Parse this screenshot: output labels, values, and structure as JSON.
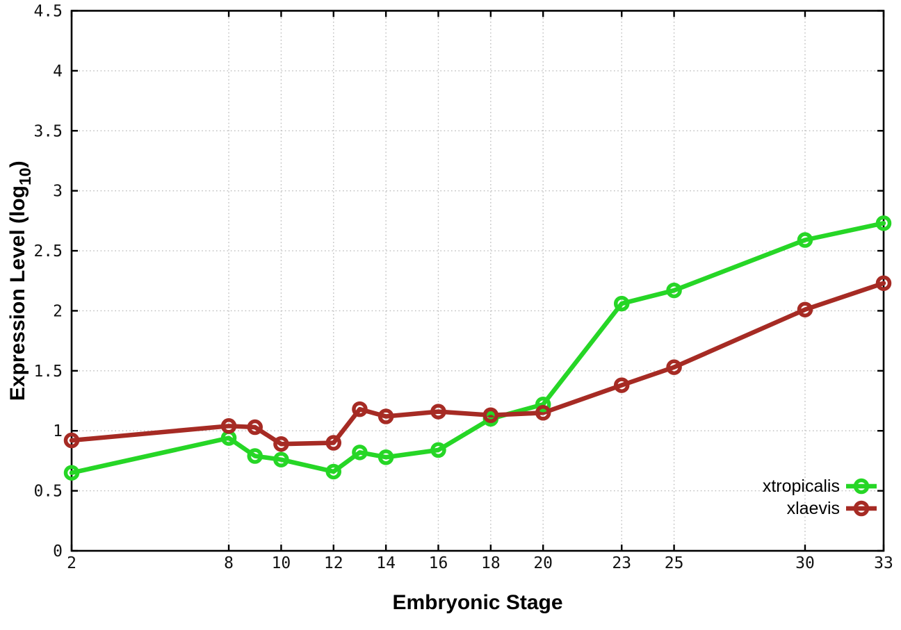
{
  "chart_data": {
    "type": "line",
    "title": "",
    "xlabel": "Embryonic Stage",
    "ylabel": {
      "pre": "Expression Level (log",
      "sub": "10",
      "post": ")"
    },
    "xlim": [
      2,
      33
    ],
    "ylim": [
      0,
      4.5
    ],
    "xticks": [
      2,
      8,
      10,
      12,
      14,
      16,
      18,
      20,
      23,
      25,
      30,
      33
    ],
    "yticks": [
      0,
      0.5,
      1,
      1.5,
      2,
      2.5,
      3,
      3.5,
      4,
      4.5
    ],
    "grid": true,
    "legend_position": "inside-bottom-right",
    "x": [
      2,
      8,
      9,
      10,
      12,
      13,
      14,
      16,
      18,
      20,
      23,
      25,
      30,
      33
    ],
    "series": [
      {
        "name": "xtropicalis",
        "color": "#26d626",
        "marker": "open-circle",
        "values": [
          0.65,
          0.94,
          0.79,
          0.76,
          0.66,
          0.82,
          0.78,
          0.84,
          1.1,
          1.22,
          2.06,
          2.17,
          2.59,
          2.73
        ]
      },
      {
        "name": "xlaevis",
        "color": "#a62b24",
        "marker": "open-circle",
        "values": [
          0.92,
          1.04,
          1.03,
          0.89,
          0.9,
          1.18,
          1.12,
          1.16,
          1.13,
          1.15,
          1.38,
          1.53,
          2.01,
          2.23
        ]
      }
    ],
    "style": {
      "grid_color": "#bdbdbd",
      "axis_color": "#000000",
      "background": "#ffffff",
      "line_width": 6.5,
      "marker_radius": 8.5,
      "marker_stroke": 5.5
    }
  }
}
